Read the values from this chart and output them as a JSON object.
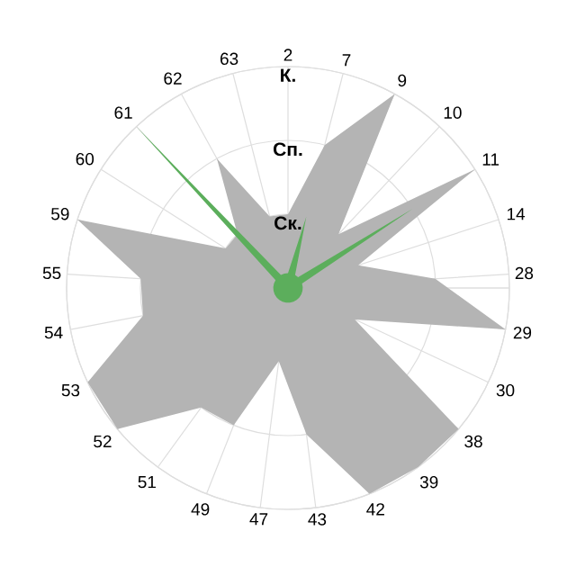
{
  "chart_data": {
    "type": "radar",
    "categories": [
      "2",
      "7",
      "9",
      "10",
      "11",
      "14",
      "28",
      "29",
      "30",
      "38",
      "39",
      "42",
      "43",
      "47",
      "49",
      "51",
      "52",
      "53",
      "54",
      "55",
      "59",
      "60",
      "61",
      "62",
      "63"
    ],
    "series": [
      {
        "color": "#b4b4b4",
        "values": [
          1,
          2,
          3,
          1,
          3,
          1,
          2,
          3,
          1,
          3,
          3,
          3,
          2,
          1,
          2,
          2,
          3,
          3,
          2,
          2,
          3,
          1,
          1,
          2,
          1
        ]
      },
      {
        "color": "#5cae5c",
        "values": [
          0.2,
          1,
          0.2,
          0.2,
          2,
          0.2,
          0.2,
          0.2,
          0.2,
          0.2,
          0.2,
          0.2,
          0.2,
          0.2,
          0.2,
          0.2,
          0.2,
          0.2,
          0.2,
          0.2,
          0.2,
          0.2,
          3,
          0.2,
          0.2
        ]
      }
    ],
    "ylim": [
      0,
      3
    ],
    "yticks": [
      {
        "value": 1,
        "label": "Ск."
      },
      {
        "value": 2,
        "label": "Сп."
      },
      {
        "value": 3,
        "label": "К."
      }
    ],
    "grid": true
  }
}
